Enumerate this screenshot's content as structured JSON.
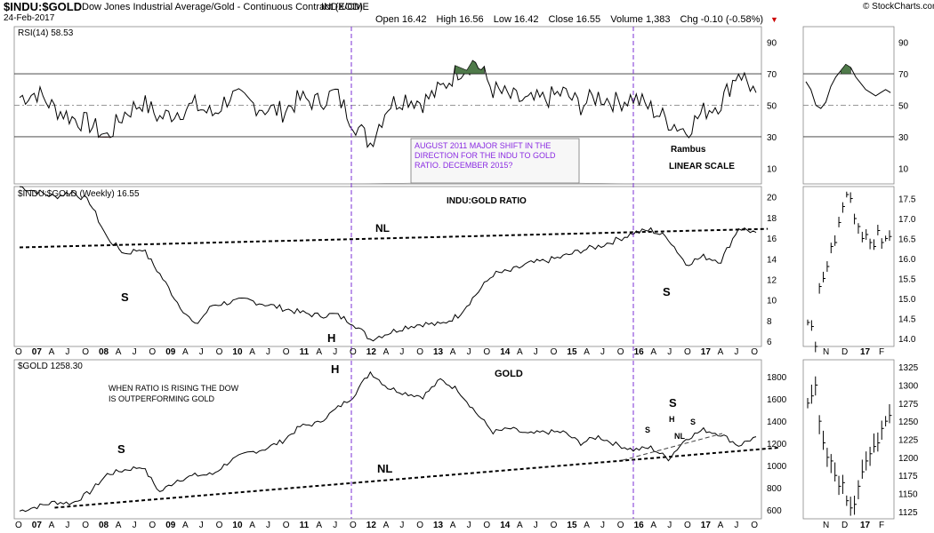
{
  "header": {
    "symbol": "$INDU:$GOLD",
    "description": "Dow Jones Industrial Average/Gold - Continuous Contract (EOD)",
    "exchange": "INDX/CME",
    "date": "24-Feb-2017",
    "site": "© StockCharts.com",
    "open_label": "Open",
    "open": "16.42",
    "high_label": "High",
    "high": "16.56",
    "low_label": "Low",
    "low": "16.42",
    "close_label": "Close",
    "close": "16.55",
    "volume_label": "Volume",
    "volume": "1,383",
    "chg_label": "Chg",
    "chg": "-0.10 (-0.58%)",
    "chg_arrow": "▼"
  },
  "colors": {
    "purple_line": "#7b2fd6",
    "annotation_text": "#8a2be2",
    "rsi_fill": "#4f7a4a",
    "rsi_low_fill": "#c98b8b"
  },
  "panels": {
    "rsi": {
      "label": "RSI(14) 58.53",
      "rambus": "Rambus",
      "linear": "LINEAR SCALE",
      "callout": [
        "AUGUST 2011 MAJOR SHIFT IN THE",
        "DIRECTION FOR THE INDU TO GOLD",
        "RATIO. DECEMBER 2015?"
      ]
    },
    "ratio": {
      "label": "$INDU:$GOLD (Weekly) 16.55",
      "title": "INDU:GOLD RATIO",
      "nl": "NL",
      "s_left": "S",
      "s_right": "S",
      "head": "H"
    },
    "gold": {
      "label": "$GOLD 1258.30",
      "title": "GOLD",
      "note": [
        "WHEN RATIO IS RISING THE DOW",
        "IS OUTPERFORMING GOLD"
      ],
      "nl": "NL",
      "s_left": "S",
      "head": "H",
      "s_big": "S",
      "mini_s1": "S",
      "mini_h": "H",
      "mini_s2": "S",
      "mini_nl": "NL"
    }
  },
  "chart_data": [
    {
      "type": "line",
      "name": "RSI(14)",
      "title": "RSI(14) 58.53",
      "y_ticks": [
        "10",
        "30",
        "50",
        "70",
        "90"
      ],
      "ylim": [
        0,
        100
      ],
      "reference_levels": [
        30,
        50,
        70
      ],
      "x": [
        "2006-10",
        "2007-01",
        "2007-04",
        "2007-07",
        "2007-10",
        "2008-01",
        "2008-04",
        "2008-07",
        "2008-10",
        "2009-01",
        "2009-04",
        "2009-07",
        "2009-10",
        "2010-01",
        "2010-04",
        "2010-07",
        "2010-10",
        "2011-01",
        "2011-04",
        "2011-07",
        "2011-10",
        "2012-01",
        "2012-04",
        "2012-07",
        "2012-10",
        "2013-01",
        "2013-04",
        "2013-07",
        "2013-10",
        "2014-01",
        "2014-04",
        "2014-07",
        "2014-10",
        "2015-01",
        "2015-04",
        "2015-07",
        "2015-10",
        "2016-01",
        "2016-04",
        "2016-07",
        "2016-10",
        "2017-01",
        "2017-02"
      ],
      "values": [
        55,
        58,
        48,
        42,
        38,
        30,
        45,
        52,
        42,
        46,
        50,
        44,
        56,
        52,
        48,
        46,
        54,
        52,
        58,
        40,
        26,
        50,
        55,
        52,
        60,
        72,
        78,
        60,
        55,
        52,
        54,
        58,
        50,
        56,
        52,
        55,
        48,
        40,
        34,
        46,
        52,
        72,
        58
      ]
    },
    {
      "type": "line",
      "name": "$INDU:$GOLD (Weekly)",
      "title": "$INDU:$GOLD (Weekly) 16.55",
      "y_ticks": [
        "6",
        "8",
        "10",
        "12",
        "14",
        "16",
        "18",
        "20"
      ],
      "ylim": [
        5.5,
        21
      ],
      "x": [
        "2006-10",
        "2007-01",
        "2007-04",
        "2007-07",
        "2007-10",
        "2008-01",
        "2008-04",
        "2008-07",
        "2008-10",
        "2009-01",
        "2009-04",
        "2009-07",
        "2009-10",
        "2010-01",
        "2010-04",
        "2010-07",
        "2010-10",
        "2011-01",
        "2011-04",
        "2011-07",
        "2011-10",
        "2012-01",
        "2012-04",
        "2012-07",
        "2012-10",
        "2013-01",
        "2013-04",
        "2013-07",
        "2013-10",
        "2014-01",
        "2014-04",
        "2014-07",
        "2014-10",
        "2015-01",
        "2015-04",
        "2015-07",
        "2015-10",
        "2016-01",
        "2016-04",
        "2016-07",
        "2016-10",
        "2017-01",
        "2017-02"
      ],
      "values": [
        21,
        20.5,
        20,
        20.5,
        19.5,
        16,
        14.5,
        15,
        12.5,
        9.8,
        7.5,
        9.5,
        9.8,
        10,
        9.6,
        9.2,
        8.8,
        8.5,
        8.6,
        7.8,
        6.2,
        6.8,
        7.4,
        7.7,
        7.6,
        8.5,
        10.5,
        12.5,
        12.8,
        13.5,
        13.8,
        14.2,
        14.8,
        15.2,
        15.8,
        16.5,
        16.8,
        16,
        13.5,
        14.2,
        13.8,
        17,
        16.55
      ],
      "trendlines": [
        {
          "label": "NL",
          "from": [
            "2006-10",
            15.1
          ],
          "to": [
            "2017-06",
            16.9
          ]
        }
      ],
      "annotations": [
        "S",
        "H",
        "S",
        "NL",
        "INDU:GOLD RATIO"
      ]
    },
    {
      "type": "line",
      "name": "$GOLD",
      "title": "$GOLD 1258.30",
      "y_ticks": [
        "600",
        "800",
        "1000",
        "1200",
        "1400",
        "1600",
        "1800"
      ],
      "ylim": [
        520,
        1950
      ],
      "x": [
        "2006-10",
        "2007-01",
        "2007-04",
        "2007-07",
        "2007-10",
        "2008-01",
        "2008-04",
        "2008-07",
        "2008-10",
        "2009-01",
        "2009-04",
        "2009-07",
        "2009-10",
        "2010-01",
        "2010-04",
        "2010-07",
        "2010-10",
        "2011-01",
        "2011-04",
        "2011-07",
        "2011-10",
        "2012-01",
        "2012-04",
        "2012-07",
        "2012-10",
        "2013-01",
        "2013-04",
        "2013-07",
        "2013-10",
        "2014-01",
        "2014-04",
        "2014-07",
        "2014-10",
        "2015-01",
        "2015-04",
        "2015-07",
        "2015-10",
        "2016-01",
        "2016-04",
        "2016-07",
        "2016-10",
        "2017-01",
        "2017-02"
      ],
      "values": [
        590,
        630,
        670,
        660,
        760,
        920,
        960,
        990,
        760,
        870,
        910,
        920,
        1040,
        1110,
        1150,
        1220,
        1350,
        1380,
        1500,
        1620,
        1840,
        1700,
        1650,
        1620,
        1770,
        1680,
        1480,
        1300,
        1330,
        1280,
        1300,
        1300,
        1200,
        1260,
        1190,
        1140,
        1160,
        1060,
        1240,
        1320,
        1280,
        1180,
        1258
      ],
      "trendlines": [
        {
          "label": "NL",
          "from": [
            "2007-04",
            620
          ],
          "to": [
            "2017-08",
            1160
          ]
        }
      ],
      "annotations": [
        "S",
        "H",
        "NL",
        "S",
        "H",
        "S",
        "NL",
        "GOLD"
      ]
    },
    {
      "type": "bar",
      "name": "$INDU:$GOLD daily (inset)",
      "y_ticks": [
        "14.0",
        "14.5",
        "15.0",
        "15.5",
        "16.0",
        "16.5",
        "17.0",
        "17.5"
      ],
      "ylim": [
        13.8,
        17.8
      ],
      "x_ticks": [
        "N",
        "D",
        "17",
        "F"
      ],
      "values": [
        14.4,
        14.3,
        13.8,
        15.3,
        15.5,
        15.8,
        16.3,
        16.4,
        16.9,
        17.3,
        17.6,
        17.5,
        17.0,
        16.8,
        16.5,
        16.6,
        16.4,
        16.3,
        16.7,
        16.4,
        16.5,
        16.55
      ]
    },
    {
      "type": "bar",
      "name": "$GOLD daily (inset)",
      "y_ticks": [
        "1125",
        "1150",
        "1175",
        "1200",
        "1225",
        "1250",
        "1275",
        "1300",
        "1325"
      ],
      "ylim": [
        1115,
        1335
      ],
      "x_ticks": [
        "N",
        "D",
        "17",
        "F"
      ],
      "values": [
        1275,
        1285,
        1300,
        1250,
        1220,
        1200,
        1195,
        1175,
        1160,
        1165,
        1140,
        1130,
        1135,
        1160,
        1180,
        1195,
        1205,
        1215,
        1220,
        1240,
        1250,
        1258
      ]
    }
  ],
  "x_axis": {
    "labels": [
      "O",
      "07",
      "A",
      "J",
      "O",
      "08",
      "A",
      "J",
      "O",
      "09",
      "A",
      "J",
      "O",
      "10",
      "A",
      "J",
      "O",
      "11",
      "A",
      "J",
      "O",
      "12",
      "A",
      "J",
      "O",
      "13",
      "A",
      "J",
      "O",
      "14",
      "A",
      "J",
      "O",
      "15",
      "A",
      "J",
      "O",
      "16",
      "A",
      "J",
      "O",
      "17",
      "A",
      "J",
      "O"
    ],
    "inset_labels": [
      "N",
      "D",
      "17",
      "F"
    ]
  }
}
